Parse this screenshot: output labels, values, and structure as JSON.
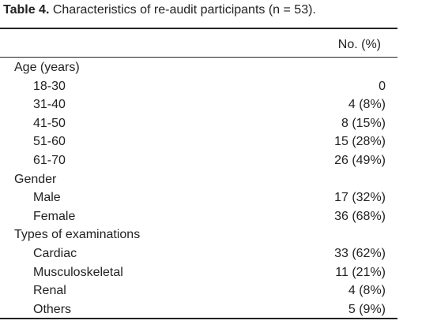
{
  "title": {
    "label": "Table 4.",
    "text": "Characteristics of re-audit participants (n = 53)."
  },
  "table": {
    "header": "No. (%)",
    "sections": [
      {
        "name": "Age (years)",
        "rows": [
          [
            "18-30",
            "0"
          ],
          [
            "31-40",
            "4 (8%)"
          ],
          [
            "41-50",
            "8 (15%)"
          ],
          [
            "51-60",
            "15 (28%)"
          ],
          [
            "61-70",
            "26 (49%)"
          ]
        ]
      },
      {
        "name": "Gender",
        "rows": [
          [
            "Male",
            "17 (32%)"
          ],
          [
            "Female",
            "36 (68%)"
          ]
        ]
      },
      {
        "name": "Types of examinations",
        "rows": [
          [
            "Cardiac",
            "33 (62%)"
          ],
          [
            "Musculoskeletal",
            "11 (21%)"
          ],
          [
            "Renal",
            "4 (8%)"
          ],
          [
            "Others",
            "5 (9%)"
          ]
        ]
      }
    ]
  }
}
